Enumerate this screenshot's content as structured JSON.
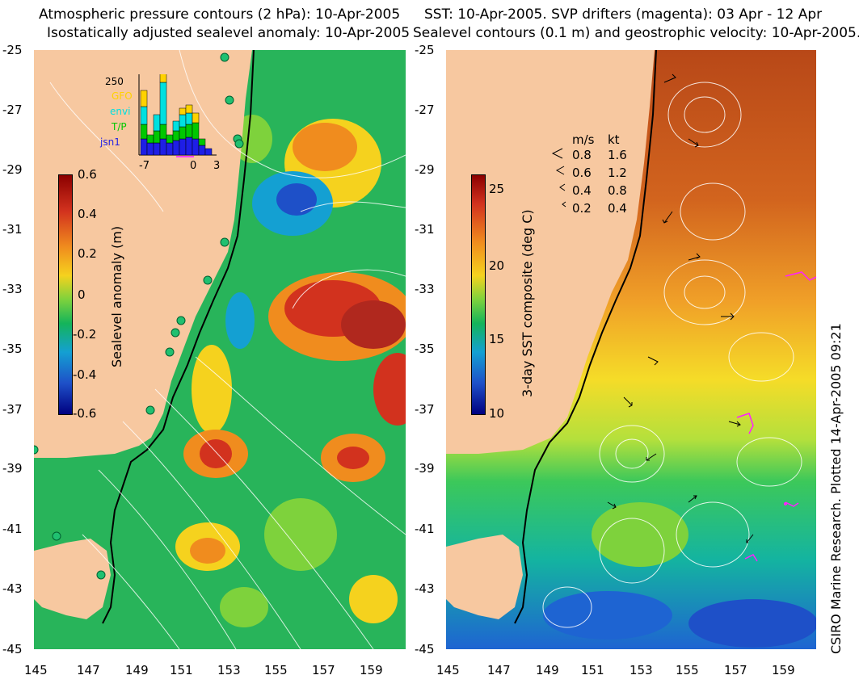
{
  "left_panel": {
    "title_line1": "Atmospheric pressure contours (2 hPa): 10-Apr-2005",
    "title_line2": "Isostatically adjusted sealevel anomaly: 10-Apr-2005",
    "y_ticks": [
      "-25",
      "-27",
      "-29",
      "-31",
      "-33",
      "-35",
      "-37",
      "-39",
      "-41",
      "-43",
      "-45"
    ],
    "x_ticks": [
      "145",
      "147",
      "149",
      "151",
      "153",
      "155",
      "157",
      "159"
    ],
    "colorbar": {
      "label": "Sealevel anomaly (m)",
      "ticks": [
        "0.6",
        "0.4",
        "0.2",
        "0",
        "-0.2",
        "-0.4",
        "-0.6"
      ],
      "colors": [
        "#8b0000",
        "#d2321e",
        "#f08c1e",
        "#f5d21e",
        "#7ed23c",
        "#14b45a",
        "#14a0d2",
        "#1e50c8",
        "#000080"
      ]
    },
    "histogram": {
      "max_label": "250",
      "legend": [
        {
          "name": "GFO",
          "color": "#ffd200"
        },
        {
          "name": "envi",
          "color": "#00e0e0"
        },
        {
          "name": "T/P",
          "color": "#00c800"
        },
        {
          "name": "jsn1",
          "color": "#1e1ee6"
        }
      ],
      "x_ticks": [
        "-7",
        "0",
        "3"
      ]
    },
    "land_color": "#f7c8a0",
    "ocean_color": "#2cb45a"
  },
  "right_panel": {
    "title_line1": "SST: 10-Apr-2005. SVP drifters (magenta): 03 Apr - 12 Apr",
    "title_line2": "Sealevel contours (0.1 m) and geostrophic velocity: 10-Apr-2005.",
    "y_ticks": [
      "-25",
      "-27",
      "-29",
      "-31",
      "-33",
      "-35",
      "-37",
      "-39",
      "-41",
      "-43",
      "-45"
    ],
    "x_ticks": [
      "145",
      "147",
      "149",
      "151",
      "153",
      "155",
      "157",
      "159"
    ],
    "colorbar": {
      "label": "3-day SST composite (deg C)",
      "ticks": [
        "25",
        "20",
        "15",
        "10"
      ],
      "colors": [
        "#8b0000",
        "#d2321e",
        "#f08c1e",
        "#f5d21e",
        "#7ed23c",
        "#14b45a",
        "#14a0d2",
        "#1e50c8",
        "#000080"
      ]
    },
    "velocity_legend": {
      "header_ms": "m/s",
      "header_kt": "kt",
      "rows": [
        {
          "ms": "0.8",
          "kt": "1.6"
        },
        {
          "ms": "0.6",
          "kt": "1.2"
        },
        {
          "ms": "0.4",
          "kt": "0.8"
        },
        {
          "ms": "0.2",
          "kt": "0.4"
        }
      ]
    }
  },
  "credit": "CSIRO Marine Research. Plotted 14-Apr-2005 09:21"
}
